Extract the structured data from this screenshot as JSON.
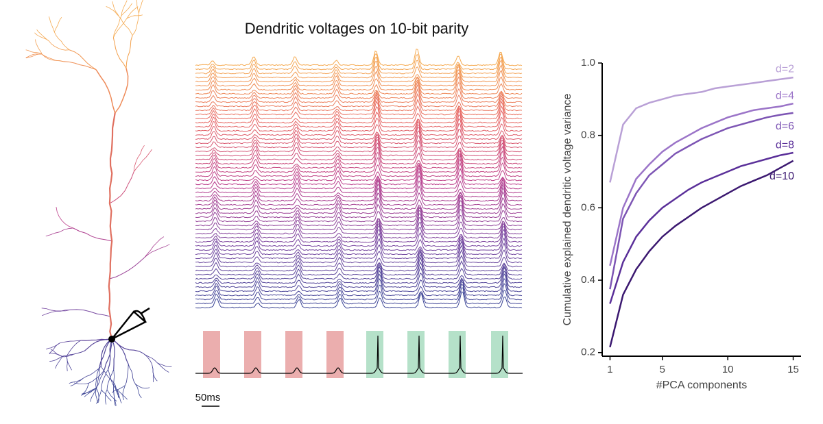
{
  "traces_panel": {
    "title": "Dendritic voltages on 10-bit parity",
    "scale_bar_label": "50ms"
  },
  "chart_data": {
    "type": "line",
    "x_label": "#PCA components",
    "y_label": "Cumulative explained dendritic voltage variance",
    "x": [
      1,
      2,
      3,
      4,
      5,
      6,
      7,
      8,
      9,
      10,
      11,
      12,
      13,
      14,
      15
    ],
    "xlim": [
      0.4,
      15.6
    ],
    "xticks": [
      1,
      5,
      10,
      15
    ],
    "ylim": [
      0.19,
      1.0
    ],
    "yticks": [
      0.2,
      0.4,
      0.6,
      0.8,
      {
        "value": 1,
        "label": "1.0"
      }
    ],
    "series": [
      {
        "name": "d=2",
        "color": "#b9a0d6",
        "values": [
          0.67,
          0.83,
          0.875,
          0.89,
          0.9,
          0.91,
          0.915,
          0.92,
          0.93,
          0.935,
          0.94,
          0.945,
          0.95,
          0.955,
          0.96
        ]
      },
      {
        "name": "d=4",
        "color": "#9b74c8",
        "values": [
          0.44,
          0.6,
          0.68,
          0.72,
          0.755,
          0.78,
          0.8,
          0.82,
          0.835,
          0.85,
          0.86,
          0.87,
          0.875,
          0.88,
          0.888
        ]
      },
      {
        "name": "d=6",
        "color": "#7d55b4",
        "values": [
          0.375,
          0.57,
          0.64,
          0.69,
          0.72,
          0.75,
          0.77,
          0.79,
          0.805,
          0.82,
          0.83,
          0.84,
          0.85,
          0.857,
          0.862
        ]
      },
      {
        "name": "d=8",
        "color": "#5a2f99",
        "values": [
          0.335,
          0.45,
          0.52,
          0.565,
          0.6,
          0.625,
          0.65,
          0.67,
          0.685,
          0.7,
          0.715,
          0.725,
          0.735,
          0.745,
          0.752
        ]
      },
      {
        "name": "d=10",
        "color": "#3b1870",
        "values": [
          0.215,
          0.36,
          0.43,
          0.48,
          0.52,
          0.55,
          0.575,
          0.6,
          0.62,
          0.64,
          0.66,
          0.675,
          0.69,
          0.71,
          0.73
        ]
      }
    ]
  }
}
